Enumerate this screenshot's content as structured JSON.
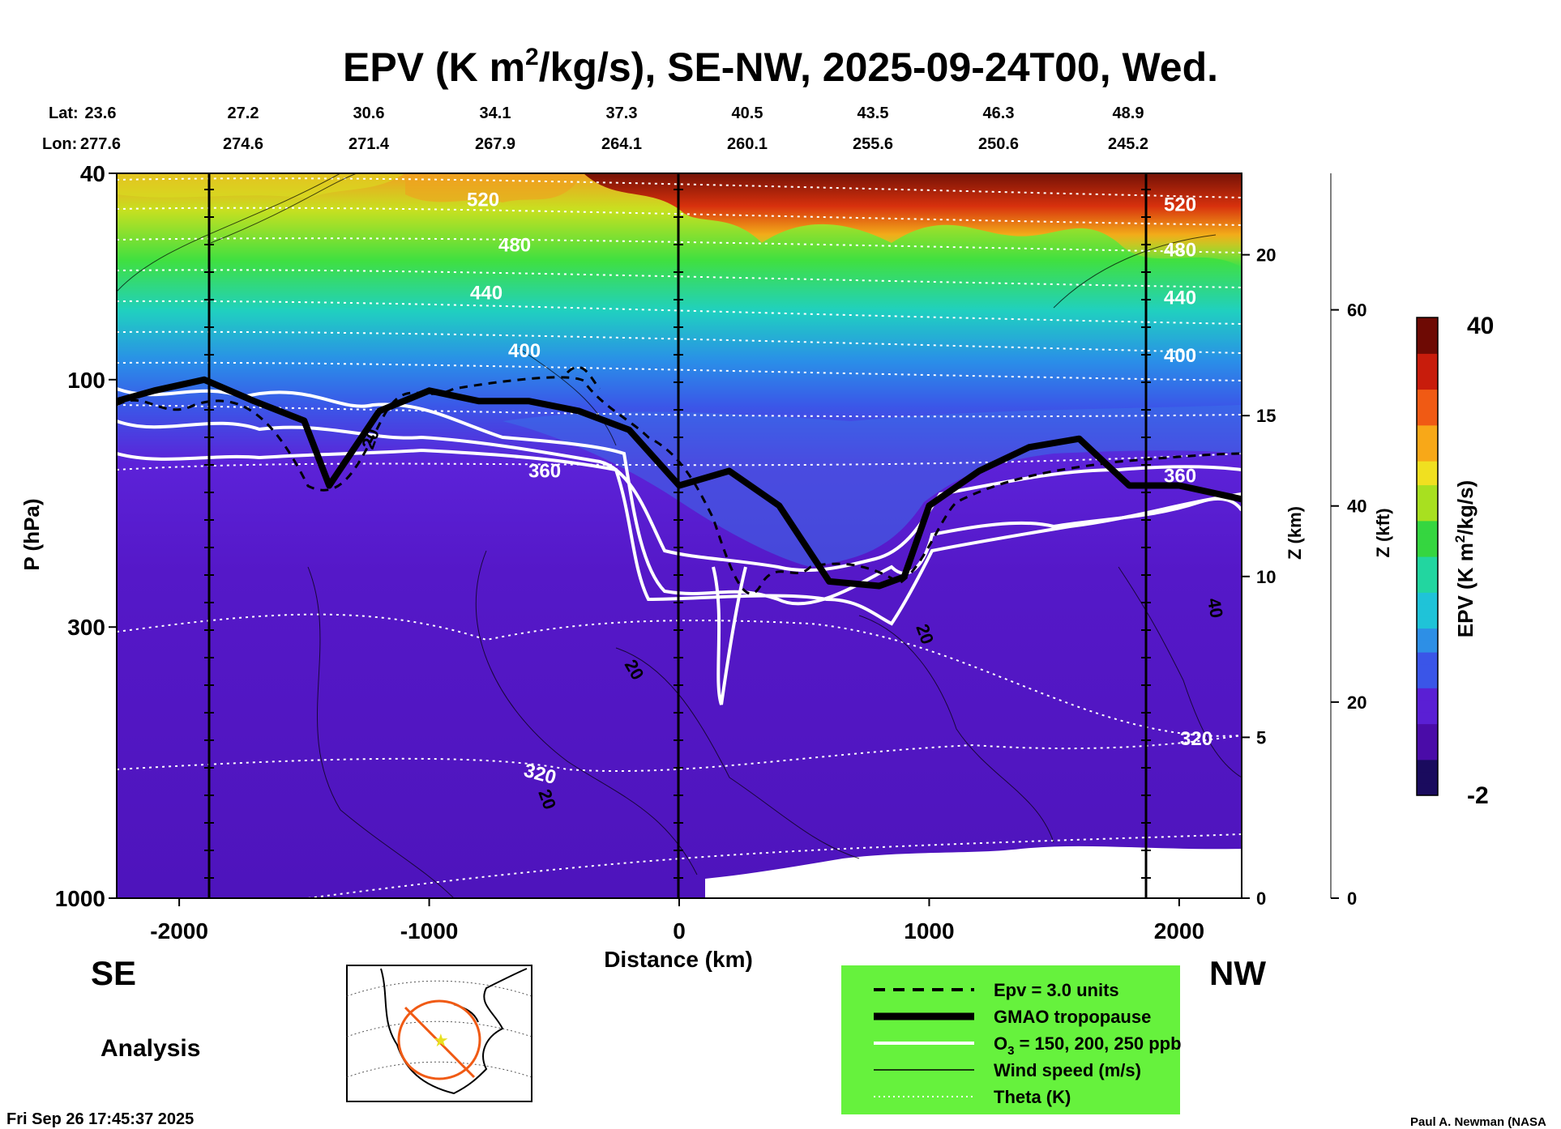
{
  "title": {
    "main": "EPV (K m",
    "sup": "2",
    "rest": "/kg/s), SE-NW, 2025-09-24T00, Wed."
  },
  "header": {
    "lat_label": "Lat:",
    "lon_label": "Lon:",
    "lat": [
      "23.6",
      "27.2",
      "30.6",
      "34.1",
      "37.3",
      "40.5",
      "43.5",
      "46.3",
      "48.9"
    ],
    "lon": [
      "277.6",
      "274.6",
      "271.4",
      "267.9",
      "264.1",
      "260.1",
      "255.6",
      "250.6",
      "245.2"
    ]
  },
  "labels": {
    "se": "SE",
    "nw": "NW",
    "analysis": "Analysis",
    "timestamp": "Fri Sep 26 17:45:37 2025",
    "credit": "Paul A. Newman (NASA"
  },
  "chart_data": {
    "type": "heatmap",
    "title": "EPV (K m2/kg/s), SE-NW, 2025-09-24T00, Wed.",
    "xlabel": "Distance (km)",
    "ylabel": "P (hPa)",
    "xlim": [
      -2250,
      2250
    ],
    "ylim": [
      1000,
      40
    ],
    "y_scale": "log",
    "x_ticks": [
      "-2000",
      "-1000",
      "0",
      "1000",
      "2000"
    ],
    "y_ticks": [
      "40",
      "100",
      "300",
      "1000"
    ],
    "z_axis": {
      "label": "Z (km)",
      "ticks": [
        "0",
        "5",
        "10",
        "15",
        "20"
      ]
    },
    "zf_axis": {
      "label": "Z (kft)",
      "ticks": [
        "0",
        "20",
        "40",
        "60"
      ]
    },
    "colorbar": {
      "label": "EPV (K m2/kg/s)",
      "min": -2,
      "max": 40,
      "min_label": "-2",
      "max_label": "40",
      "colors": [
        "#1a0b5e",
        "#4a0ca8",
        "#5a1fd4",
        "#3a55e8",
        "#2d8fe6",
        "#1fc3d8",
        "#22d6a0",
        "#35d640",
        "#a8e020",
        "#f0e020",
        "#f8a818",
        "#f05a14",
        "#c81c0c",
        "#6e0a04"
      ]
    },
    "theta_contours": [
      {
        "label": "520",
        "p": 45
      },
      {
        "label": "480",
        "p": 55
      },
      {
        "label": "440",
        "p": 68
      },
      {
        "label": "400",
        "p": 88
      },
      {
        "label": "360",
        "p": 150
      },
      {
        "label": "320",
        "p": 520
      }
    ],
    "wind_labels": [
      "20",
      "20",
      "20",
      "20",
      "40"
    ],
    "tropopause_hPa": {
      "x": [
        -2250,
        -2100,
        -1900,
        -1700,
        -1500,
        -1400,
        -1200,
        -1000,
        -800,
        -600,
        -400,
        -200,
        0,
        200,
        400,
        600,
        800,
        900,
        1000,
        1200,
        1400,
        1600,
        1800,
        2000,
        2250
      ],
      "y": [
        110,
        105,
        100,
        110,
        120,
        160,
        115,
        105,
        110,
        110,
        115,
        125,
        160,
        150,
        175,
        245,
        250,
        240,
        175,
        150,
        135,
        130,
        160,
        160,
        170
      ]
    },
    "legend": [
      {
        "style": "dashed",
        "label": "Epv = 3.0 units"
      },
      {
        "style": "thick",
        "label": "GMAO tropopause"
      },
      {
        "style": "white",
        "label": "O3 = 150, 200, 250 ppb"
      },
      {
        "style": "thin",
        "label": "Wind speed (m/s)"
      },
      {
        "style": "dotted",
        "label": "Theta (K)"
      }
    ],
    "legend_bg": "#66f23d"
  }
}
